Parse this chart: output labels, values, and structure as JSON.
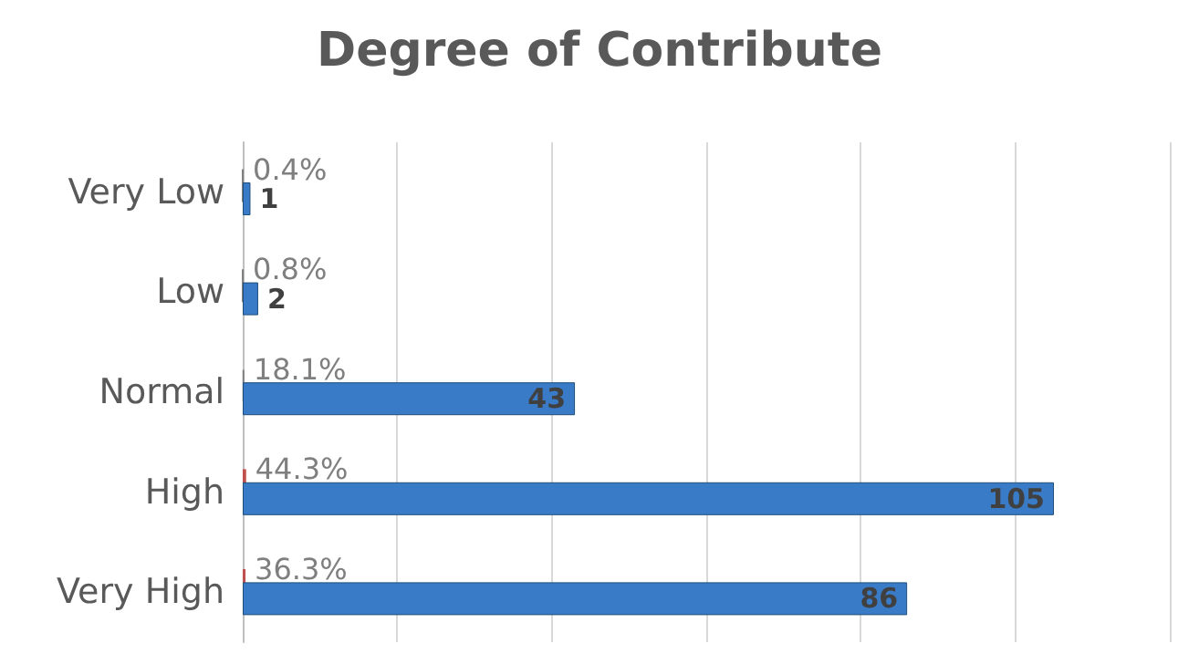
{
  "chart_data": {
    "type": "bar",
    "orientation": "horizontal",
    "title": "Degree of Contribute",
    "categories": [
      "Very Low",
      "Low",
      "Normal",
      "High",
      "Very High"
    ],
    "series": [
      {
        "colors": [
          "#7f7f7f",
          "#7f7f7f",
          "#7f7f7f",
          "#c0504d",
          "#c0504d"
        ],
        "values": [
          0.004,
          0.008,
          0.181,
          0.443,
          0.363
        ],
        "value_labels": [
          "0.4%",
          "0.8%",
          "18.1%",
          "44.3%",
          "36.3%"
        ]
      },
      {
        "color": "#3a7bc8",
        "values": [
          1,
          2,
          43,
          105,
          86
        ],
        "value_labels": [
          "1",
          "2",
          "43",
          "105",
          "86"
        ]
      }
    ],
    "xlim": [
      0,
      120
    ],
    "xticks": [
      {
        "value": 0,
        "label": null
      },
      {
        "value": 20,
        "label": null
      },
      {
        "value": 40,
        "label": null
      },
      {
        "value": 60,
        "label": null
      },
      {
        "value": 80,
        "label": null
      },
      {
        "value": 100,
        "label": null
      },
      {
        "value": 120,
        "label": null
      }
    ],
    "grid": "x",
    "tick_labels": "y"
  }
}
